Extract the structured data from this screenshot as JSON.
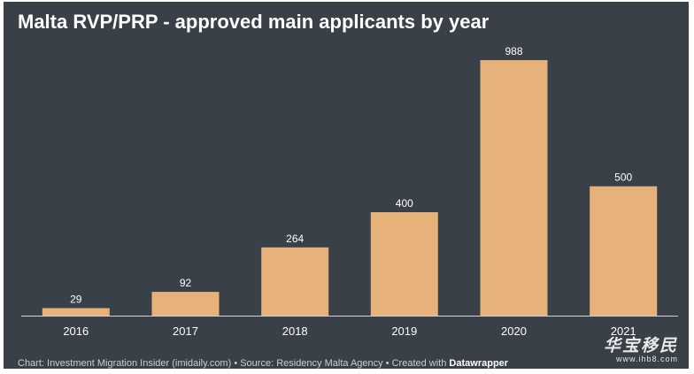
{
  "title": "Malta RVP/PRP - approved main applicants by year",
  "footer": {
    "prefix": "Chart: Investment Migration Insider (imidaily.com) • Source: Residency Malta Agency • Created with ",
    "tool": "Datawrapper"
  },
  "watermark": {
    "title": "华宝移民",
    "url": "www.ihb8.com"
  },
  "colors": {
    "background": "#394048",
    "bar": "#E6B27A",
    "text": "#ffffff",
    "axis": "#d0d4d8"
  },
  "chart_data": {
    "type": "bar",
    "title": "Malta RVP/PRP - approved main applicants by year",
    "categories": [
      "2016",
      "2017",
      "2018",
      "2019",
      "2020",
      "2021"
    ],
    "values": [
      29,
      92,
      264,
      400,
      988,
      500
    ],
    "xlabel": "",
    "ylabel": "",
    "ylim": [
      0,
      988
    ],
    "grid": false,
    "data_labels": true
  }
}
